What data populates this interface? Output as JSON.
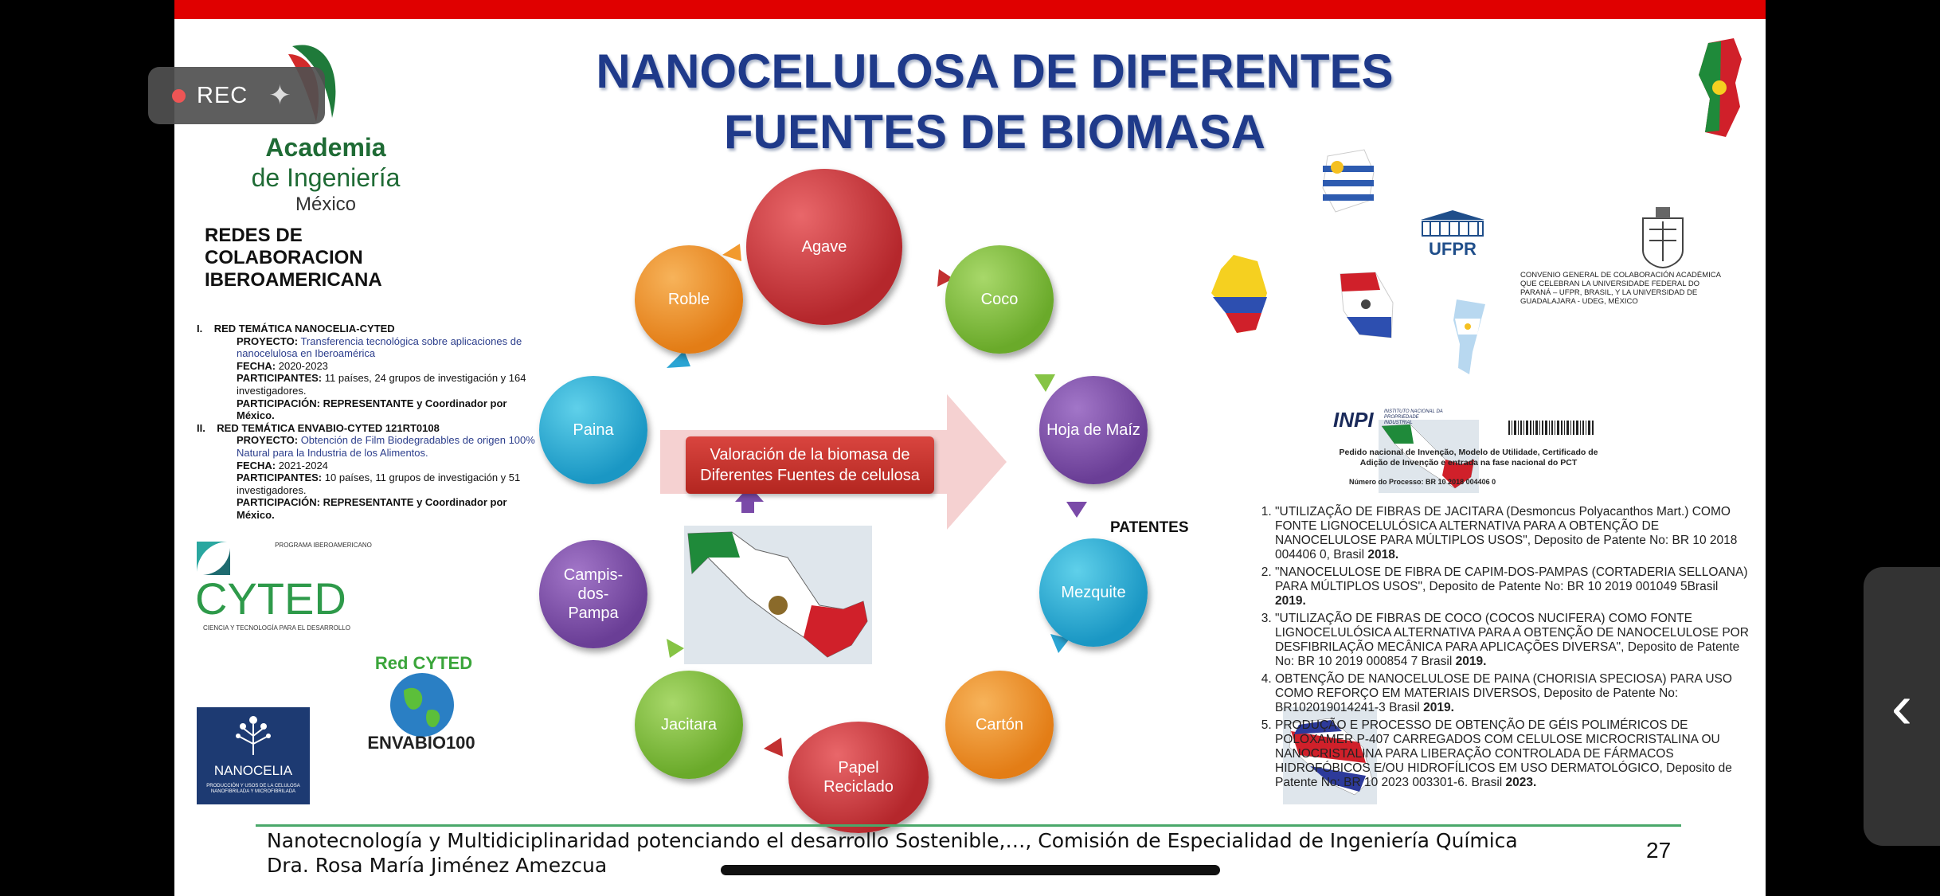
{
  "slide": {
    "title": "NANOCELULOSA DE DIFERENTES FUENTES DE BIOMASA",
    "page_number": "27",
    "colors": {
      "top_bar": "#e00000",
      "title": "#1f3a8a",
      "footer_line": "#4aa86a"
    }
  },
  "academia": {
    "line1": "Academia",
    "line2": "de Ingeniería",
    "line3": "México"
  },
  "redes_heading": "REDES DE COLABORACION IBEROAMERICANA",
  "projects": [
    {
      "num": "I.",
      "name": "RED TEMÁTICA NANOCELIA-CYTED",
      "proyecto_label": "PROYECTO:",
      "proyecto": "Transferencia tecnológica sobre aplicaciones de nanocelulosa en Iberoamérica",
      "fecha_label": "FECHA:",
      "fecha": "2020-2023",
      "participantes_label": "PARTICIPANTES:",
      "participantes": "11 países, 24 grupos de investigación y 164 investigadores.",
      "participacion": "PARTICIPACIÓN: REPRESENTANTE y Coordinador por México."
    },
    {
      "num": "II.",
      "name": "RED TEMÁTICA ENVABIO-CYTED 121RT0108",
      "proyecto_label": "PROYECTO:",
      "proyecto": "Obtención de Film Biodegradables de origen 100% Natural para la Industria de los Alimentos.",
      "fecha_label": "FECHA:",
      "fecha": "2021-2024",
      "participantes_label": "PARTICIPANTES:",
      "participantes": "10 países, 11 grupos de investigación y 51 investigadores.",
      "participacion": "PARTICIPACIÓN: REPRESENTANTE y Coordinador por México."
    }
  ],
  "cyted": {
    "programa": "PROGRAMA IBEROAMERICANO",
    "name": "CYTED",
    "tagline": "CIENCIA Y TECNOLOGÍA PARA EL DESARROLLO"
  },
  "red_cyted": {
    "top": "Red CYTED",
    "bottom": "ENVABIO100"
  },
  "nanocelia": {
    "name": "NANOCELIA",
    "caption": "PRODUCCIÓN Y USOS DE LA CELULOSA NANOFIBRILADA Y MICROFIBRILADA"
  },
  "cycle": {
    "center": "Valoración  de la biomasa de Diferentes Fuentes de celulosa",
    "nodes": [
      {
        "label": "Agave",
        "color": "red"
      },
      {
        "label": "Coco",
        "color": "green"
      },
      {
        "label": "Hoja de Maíz",
        "color": "purple"
      },
      {
        "label": "Mezquite",
        "color": "blue"
      },
      {
        "label": "Cartón",
        "color": "orange"
      },
      {
        "label": "Papel Reciclado",
        "color": "red"
      },
      {
        "label": "Jacitara",
        "color": "green"
      },
      {
        "label": "Campis-dos-Pampa",
        "color": "purple"
      },
      {
        "label": "Paina",
        "color": "blue"
      },
      {
        "label": "Roble",
        "color": "orange"
      }
    ]
  },
  "ufpr": {
    "label": "UFPR"
  },
  "convenio": "CONVENIO GENERAL DE COLABORACIÓN ACADÉMICA QUE CELEBRAN LA UNIVERSIDADE FEDERAL DO PARANÁ – UFPR, BRASIL, Y LA UNIVERSIDAD DE GUADALAJARA - UDEG, MÉXICO",
  "inpi": {
    "logo": "INPI",
    "org": "INSTITUTO NACIONAL DA PROPRIEDADE INDUSTRIAL",
    "doc_title": "Pedido nacional de Invenção, Modelo de Utilidade, Certificado de Adição de Invenção e entrada na fase nacional do PCT",
    "process_label": "Número do Processo:",
    "process": "BR 10 2018 004406 0"
  },
  "patents_heading": "PATENTES",
  "patents": [
    {
      "text": "\"UTILIZAÇÃO DE FIBRAS DE JACITARA (Desmoncus Polyacanthos Mart.) COMO FONTE LIGNOCELULÓSICA ALTERNATIVA PARA A OBTENÇÃO DE NANOCELULOSE PARA MÚLTIPLOS USOS\", Deposito de Patente No: BR 10 2018 004406 0, Brasil",
      "year": "2018."
    },
    {
      "text": "\"NANOCELULOSE DE FIBRA DE CAPIM-DOS-PAMPAS (CORTADERIA SELLOANA) PARA MÚLTIPLOS USOS\", Deposito de Patente No:  BR 10 2019 001049 5Brasil",
      "year": "2019."
    },
    {
      "text": "\"UTILIZAÇÃO DE FIBRAS DE COCO (COCOS NUCIFERA) COMO FONTE LIGNOCELULÓSICA ALTERNATIVA PARA A OBTENÇÃO DE NANOCELULOSE POR DESFIBRILAÇÃO MECÂNICA PARA APLICAÇÕES DIVERSA\", Deposito de Patente No:  BR 10 2019 000854 7 Brasil",
      "year": "2019."
    },
    {
      "text": "OBTENÇÃO DE NANOCELULOSE DE PAINA (CHORISIA SPECIOSA) PARA USO COMO REFORÇO EM MATERIAIS DIVERSOS, Deposito de Patente No:  BR102019014241-3 Brasil",
      "year": "2019."
    },
    {
      "text": "PRODUÇÃO E PROCESSO DE OBTENÇÃO DE GÉIS POLIMÉRICOS DE POLOXAMER P-407 CARREGADOS COM CELULOSE MICROCRISTALINA OU NANOCRISTALINA PARA LIBERAÇÃO CONTROLADA DE FÁRMACOS HIDROFÓBICOS E/OU HIDROFÍLICOS EM USO DERMATOLÓGICO, Deposito de Patente No:  BR 10 2023 003301-6. Brasil",
      "year": "2023."
    }
  ],
  "footer": {
    "line1": "Nanotecnología y Multidiciplinaridad potenciando el desarrollo Sostenible,…, Comisión de Especialidad de Ingeniería Química",
    "line2": "Dra. Rosa María Jiménez Amezcua"
  },
  "recording": {
    "label": "REC",
    "icon": "sparkle-icon"
  },
  "side_handle": {
    "icon": "chevron-left-icon"
  }
}
